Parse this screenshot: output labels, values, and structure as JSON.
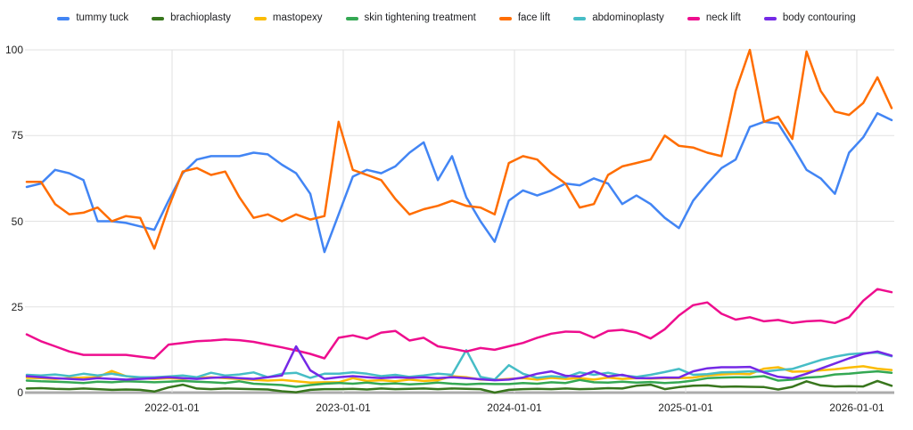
{
  "chart_data": {
    "type": "line",
    "title": "",
    "legend_position": "top",
    "grid": true,
    "background": "#ffffff",
    "gridline_color": "#e2e2e2",
    "baseline_color": "#ababab",
    "x_axis": {
      "tick_labels": [
        "2022-01-01",
        "2023-01-01",
        "2024-01-01",
        "2025-01-01",
        "2026-01-01"
      ]
    },
    "y_axis": {
      "tick_labels": [
        "0",
        "25",
        "50",
        "75",
        "100"
      ],
      "range": [
        0,
        100
      ]
    },
    "sampling_note": "values estimated from plot; ~monthly samples from 2021-03 to 2026-04",
    "series": [
      {
        "name": "tummy tuck",
        "color": "#4285f4",
        "values": [
          60,
          61,
          65,
          64,
          62,
          50,
          50,
          49.5,
          48.5,
          47.5,
          56,
          64,
          68,
          69,
          69,
          69,
          70,
          69.5,
          66.5,
          64,
          58,
          41,
          52,
          63,
          65,
          64,
          66,
          70,
          73,
          62,
          69,
          57,
          50,
          44,
          56,
          59,
          57.5,
          59,
          61,
          60.5,
          62.5,
          61,
          55,
          57.5,
          55,
          51,
          48,
          56,
          61,
          65.5,
          68,
          77.5,
          79,
          78.5,
          72,
          65,
          62.5,
          58,
          70,
          74.5,
          81.5,
          79.5
        ]
      },
      {
        "name": "brachioplasty",
        "color": "#38761d",
        "values": [
          1.2,
          1.3,
          1.1,
          1,
          1.2,
          1,
          0.8,
          0.9,
          0.8,
          0.3,
          1.5,
          2.3,
          1.2,
          1,
          1.2,
          1.1,
          1,
          0.9,
          0.4,
          0.1,
          0.8,
          1,
          1,
          1.1,
          0.9,
          1.2,
          1,
          1.1,
          1.2,
          1,
          1.2,
          1.1,
          1,
          0,
          0.8,
          1,
          1.1,
          1,
          1.2,
          1,
          1.1,
          1.3,
          1.2,
          2,
          2.3,
          1,
          1.6,
          2,
          2.1,
          1.7,
          1.8,
          1.7,
          1.6,
          0.9,
          1.7,
          3.3,
          2.1,
          1.8,
          1.9,
          1.8,
          3.4,
          2
        ]
      },
      {
        "name": "mastopexy",
        "color": "#fbbc04",
        "values": [
          4.3,
          4.2,
          4,
          4.2,
          4.4,
          4.5,
          6.3,
          4.8,
          4.2,
          4,
          4.2,
          4,
          4.3,
          4.5,
          4.2,
          4,
          3.7,
          3.5,
          3.7,
          3.3,
          2.9,
          3,
          3,
          4.2,
          3.4,
          3.6,
          3.3,
          3.8,
          3.4,
          3.6,
          4.8,
          4.5,
          3.8,
          3.7,
          4,
          4.2,
          3.8,
          4.3,
          4,
          4.2,
          3.8,
          4.4,
          4,
          4.2,
          4.1,
          4.2,
          4.2,
          4.4,
          5,
          5.3,
          5.5,
          5.4,
          7,
          7.4,
          6.1,
          6.2,
          6.5,
          6.8,
          7.3,
          7.7,
          7,
          6.6
        ]
      },
      {
        "name": "skin tightening treatment",
        "color": "#34a853",
        "values": [
          3.5,
          3.3,
          3.2,
          3,
          2.8,
          3.2,
          3,
          3.3,
          3.2,
          3,
          3.2,
          3.4,
          3.2,
          3,
          2.8,
          3.3,
          2.6,
          2.4,
          2.2,
          1.7,
          2.2,
          2.6,
          2.8,
          2.6,
          2.9,
          2.5,
          2.7,
          2.4,
          2.6,
          2.9,
          2.6,
          2.4,
          2.6,
          2.5,
          2.5,
          2.8,
          2.6,
          3,
          2.8,
          3.7,
          3,
          2.9,
          3.2,
          2.9,
          3.1,
          2.8,
          3,
          3.5,
          4.2,
          4.4,
          4.5,
          4.5,
          4.8,
          3.5,
          3.8,
          4.4,
          4.6,
          5.3,
          5.5,
          5.9,
          6.2,
          5.8
        ]
      },
      {
        "name": "face lift",
        "color": "#ff6d01",
        "values": [
          61.5,
          61.5,
          55,
          52,
          52.5,
          54,
          50,
          51.5,
          51,
          42,
          54,
          64.5,
          65.5,
          63.5,
          64.5,
          57,
          51,
          52,
          50,
          52,
          50.5,
          51.5,
          79,
          65,
          63.5,
          62,
          56.5,
          52,
          53.5,
          54.5,
          56,
          54.5,
          54,
          52,
          67,
          69,
          68,
          64,
          61,
          54,
          55,
          63.5,
          66,
          67,
          68,
          75,
          72,
          71.5,
          70,
          69,
          88,
          100,
          79,
          80.5,
          74,
          99.5,
          88,
          82,
          81,
          84.5,
          92,
          83
        ]
      },
      {
        "name": "abdominoplasty",
        "color": "#46bdc6",
        "values": [
          5.2,
          5,
          5.3,
          4.8,
          5.5,
          5,
          5.5,
          4.8,
          4.5,
          4.5,
          4.7,
          5,
          4.5,
          5.8,
          5,
          5.3,
          5.9,
          4.5,
          5.5,
          5.8,
          4.3,
          5.5,
          5.5,
          5.9,
          5.5,
          4.8,
          5.2,
          4.6,
          5,
          5.5,
          5.2,
          12.4,
          4.6,
          3.8,
          8,
          5.5,
          4.3,
          4.8,
          4.5,
          5.9,
          5.2,
          5.8,
          5,
          4.6,
          5.2,
          6,
          6.9,
          5.2,
          5.4,
          5.9,
          6,
          6.2,
          6.1,
          6.6,
          6.9,
          8.2,
          9.5,
          10.5,
          11.2,
          11.5,
          11.7,
          10.6
        ]
      },
      {
        "name": "neck lift",
        "color": "#ee0d8e",
        "values": [
          17,
          15,
          13.5,
          12,
          11,
          11,
          11,
          11,
          10.5,
          10,
          14,
          14.5,
          15,
          15.2,
          15.5,
          15.3,
          14.8,
          14,
          13.2,
          12.3,
          11.3,
          10,
          16,
          16.7,
          15.7,
          17.5,
          18,
          15.2,
          16,
          13.5,
          12.8,
          12,
          13,
          12.5,
          13.5,
          14.5,
          16,
          17.2,
          17.8,
          17.7,
          16,
          18,
          18.3,
          17.5,
          15.8,
          18.5,
          22.5,
          25.5,
          26.3,
          23,
          21.3,
          22,
          20.8,
          21.2,
          20.3,
          20.8,
          21,
          20.3,
          22,
          26.8,
          30.2,
          29.3
        ]
      },
      {
        "name": "body contouring",
        "color": "#7429e6",
        "values": [
          4.8,
          4.5,
          4.2,
          4,
          3.8,
          4.2,
          4,
          3.8,
          4,
          4.2,
          4.5,
          4.2,
          4,
          4.3,
          4.5,
          4.2,
          4,
          4.5,
          5,
          13.5,
          6.5,
          4,
          4.5,
          4.8,
          4.5,
          4.2,
          4.5,
          4.3,
          4.5,
          4.2,
          4.5,
          4.2,
          3.9,
          3.6,
          3.8,
          4.4,
          5.5,
          6.2,
          4.9,
          4.7,
          6.2,
          4.7,
          5.2,
          4.2,
          4.2,
          4.4,
          4.4,
          6.2,
          7.1,
          7.4,
          7.4,
          7.5,
          5.9,
          4.6,
          4.2,
          5.5,
          7,
          8.5,
          10,
          11.3,
          12,
          10.8
        ]
      }
    ]
  }
}
